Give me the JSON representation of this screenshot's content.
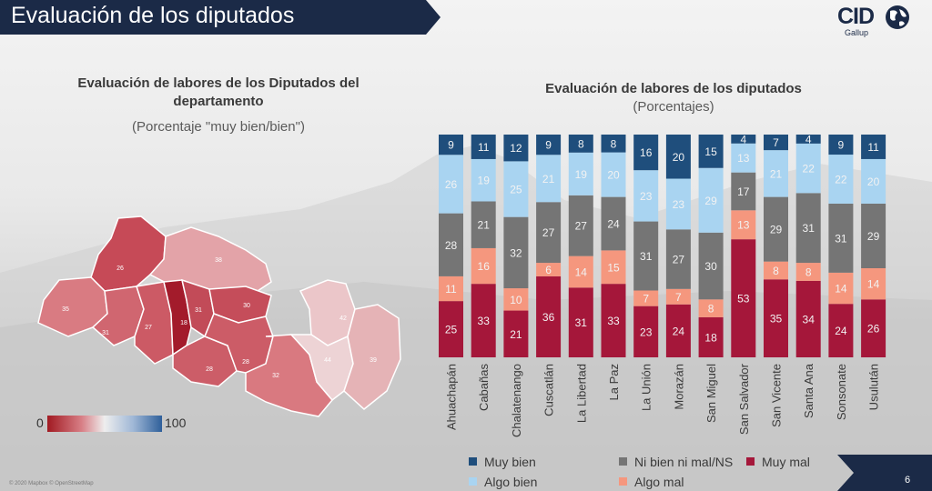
{
  "header": {
    "title": "Evaluación de los diputados"
  },
  "logo": {
    "name": "CID",
    "sub": "Gallup"
  },
  "map_panel": {
    "title": "Evaluación de labores de los Diputados del departamento",
    "subtitle": "(Porcentaje \"muy bien/bien\")",
    "scale_min": "0",
    "scale_max": "100",
    "region_values": [
      "26",
      "38",
      "35",
      "31",
      "27",
      "18",
      "31",
      "30",
      "28",
      "28",
      "32",
      "42",
      "44",
      "39"
    ],
    "credit": "© 2020 Mapbox © OpenStreetMap"
  },
  "chart_panel": {
    "title": "Evaluación de labores de los diputados",
    "subtitle": "(Porcentajes)"
  },
  "chart_data": {
    "type": "bar",
    "stacked": true,
    "categories": [
      "Ahuachapán",
      "Cabañas",
      "Chalatenango",
      "Cuscatlán",
      "La Libertad",
      "La Paz",
      "La Unión",
      "Morazán",
      "San Miguel",
      "San Salvador",
      "San Vicente",
      "Santa Ana",
      "Sonsonate",
      "Usulután"
    ],
    "series": [
      {
        "name": "Muy mal",
        "color": "#a5173a",
        "values": [
          25,
          33,
          21,
          36,
          31,
          33,
          23,
          24,
          18,
          53,
          35,
          34,
          24,
          26
        ]
      },
      {
        "name": "Algo mal",
        "color": "#f5977e",
        "values": [
          11,
          16,
          10,
          6,
          14,
          15,
          7,
          7,
          8,
          13,
          8,
          8,
          14,
          14
        ]
      },
      {
        "name": "Ni bien ni mal/NS",
        "color": "#757575",
        "values": [
          28,
          21,
          32,
          27,
          27,
          24,
          31,
          27,
          30,
          17,
          29,
          31,
          31,
          29
        ]
      },
      {
        "name": "Algo bien",
        "color": "#a9d4f1",
        "values": [
          26,
          19,
          25,
          21,
          19,
          20,
          23,
          23,
          29,
          13,
          21,
          22,
          22,
          20
        ]
      },
      {
        "name": "Muy bien",
        "color": "#1f4e7c",
        "values": [
          9,
          11,
          12,
          9,
          8,
          8,
          16,
          20,
          15,
          4,
          7,
          4,
          9,
          11
        ]
      }
    ],
    "legend": [
      {
        "label": "Muy bien",
        "color": "#1f4e7c"
      },
      {
        "label": "Ni bien ni mal/NS",
        "color": "#757575"
      },
      {
        "label": "Muy mal",
        "color": "#a5173a"
      },
      {
        "label": "Algo bien",
        "color": "#a9d4f1"
      },
      {
        "label": "Algo mal",
        "color": "#f5977e"
      }
    ],
    "legend_position": "bottom"
  },
  "footer": {
    "page": "6"
  }
}
